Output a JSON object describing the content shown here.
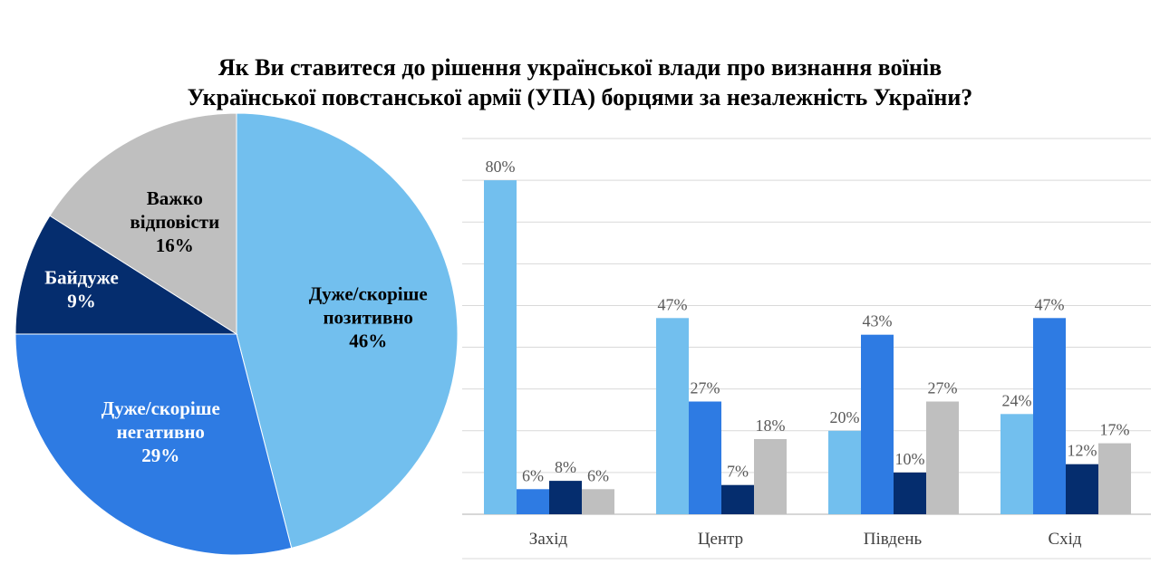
{
  "title": {
    "line1": "Як Ви ставитеся до рішення української влади про визнання воїнів",
    "line2": "Української повстанської армії (УПА) борцями за незалежність України?"
  },
  "colors": {
    "positive": "#72BFEE",
    "negative": "#2E7BE3",
    "indifferent": "#052D6E",
    "hard": "#BFBFBF",
    "grid": "#D9D9D9",
    "axis": "#BFBFBF"
  },
  "chart_data": [
    {
      "type": "pie",
      "slices": [
        {
          "label_lines": [
            "Дуже/скоріше",
            "позитивно",
            "46%"
          ],
          "value": 46,
          "color": "#72BFEE",
          "text_color": "#000000"
        },
        {
          "label_lines": [
            "Дуже/скоріше",
            "негативно",
            "29%"
          ],
          "value": 29,
          "color": "#2E7BE3",
          "text_color": "#FFFFFF"
        },
        {
          "label_lines": [
            "Байдуже",
            "9%"
          ],
          "value": 9,
          "color": "#052D6E",
          "text_color": "#FFFFFF"
        },
        {
          "label_lines": [
            "Важко",
            "відповісти",
            "16%"
          ],
          "value": 16,
          "color": "#BFBFBF",
          "text_color": "#000000"
        }
      ]
    },
    {
      "type": "bar",
      "categories": [
        "Захід",
        "Центр",
        "Південь",
        "Схід"
      ],
      "ylim": [
        0,
        90
      ],
      "grid": true,
      "series": [
        {
          "values": [
            80,
            47,
            20,
            24
          ],
          "labels": [
            "80%",
            "47%",
            "20%",
            "24%"
          ],
          "color": "#72BFEE"
        },
        {
          "values": [
            6,
            27,
            43,
            47
          ],
          "labels": [
            "6%",
            "27%",
            "43%",
            "47%"
          ],
          "color": "#2E7BE3"
        },
        {
          "values": [
            8,
            7,
            10,
            12
          ],
          "labels": [
            "8%",
            "7%",
            "10%",
            "12%"
          ],
          "color": "#052D6E"
        },
        {
          "values": [
            6,
            18,
            27,
            17
          ],
          "labels": [
            "6%",
            "18%",
            "27%",
            "17%"
          ],
          "color": "#BFBFBF"
        }
      ]
    }
  ]
}
